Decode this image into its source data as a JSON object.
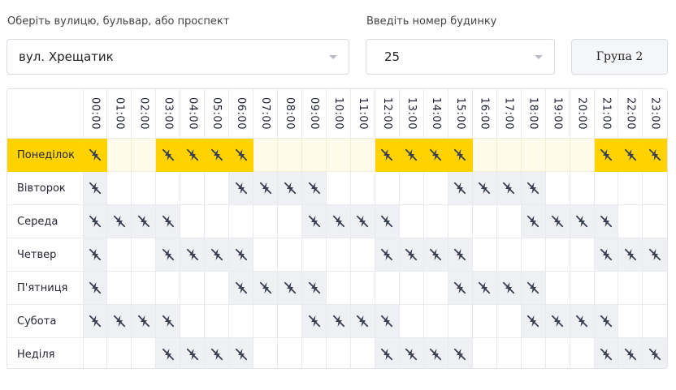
{
  "street": {
    "label": "Оберіть вулицю, бульвар, або проспект",
    "value": "вул. Хрещатик"
  },
  "house": {
    "label": "Введіть номер будинку",
    "value": "25"
  },
  "group_button": "Група 2",
  "accent_color": "#ffd200",
  "outage_color": "#eef0f4",
  "cell_icon": "power-off-icon",
  "hours": [
    "00:00",
    "01:00",
    "02:00",
    "03:00",
    "04:00",
    "05:00",
    "06:00",
    "07:00",
    "08:00",
    "09:00",
    "10:00",
    "11:00",
    "12:00",
    "13:00",
    "14:00",
    "15:00",
    "16:00",
    "17:00",
    "18:00",
    "19:00",
    "20:00",
    "21:00",
    "22:00",
    "23:00"
  ],
  "schedule": [
    {
      "day": "Понеділок",
      "highlighted": true,
      "outages": [
        0,
        3,
        4,
        5,
        6,
        12,
        13,
        14,
        15,
        21,
        22,
        23
      ]
    },
    {
      "day": "Вівторок",
      "highlighted": false,
      "outages": [
        0,
        6,
        7,
        8,
        9,
        15,
        16,
        17,
        18
      ]
    },
    {
      "day": "Середа",
      "highlighted": false,
      "outages": [
        0,
        1,
        2,
        3,
        9,
        10,
        11,
        12,
        18,
        19,
        20,
        21
      ]
    },
    {
      "day": "Четвер",
      "highlighted": false,
      "outages": [
        0,
        3,
        4,
        5,
        6,
        12,
        13,
        14,
        15,
        21,
        22,
        23
      ]
    },
    {
      "day": "П'ятниця",
      "highlighted": false,
      "outages": [
        0,
        6,
        7,
        8,
        9,
        15,
        16,
        17,
        18
      ]
    },
    {
      "day": "Субота",
      "highlighted": false,
      "outages": [
        0,
        1,
        2,
        3,
        9,
        10,
        11,
        12,
        18,
        19,
        20,
        21
      ]
    },
    {
      "day": "Неділя",
      "highlighted": false,
      "outages": [
        3,
        4,
        5,
        6,
        12,
        13,
        14,
        15,
        21,
        22,
        23
      ]
    }
  ]
}
